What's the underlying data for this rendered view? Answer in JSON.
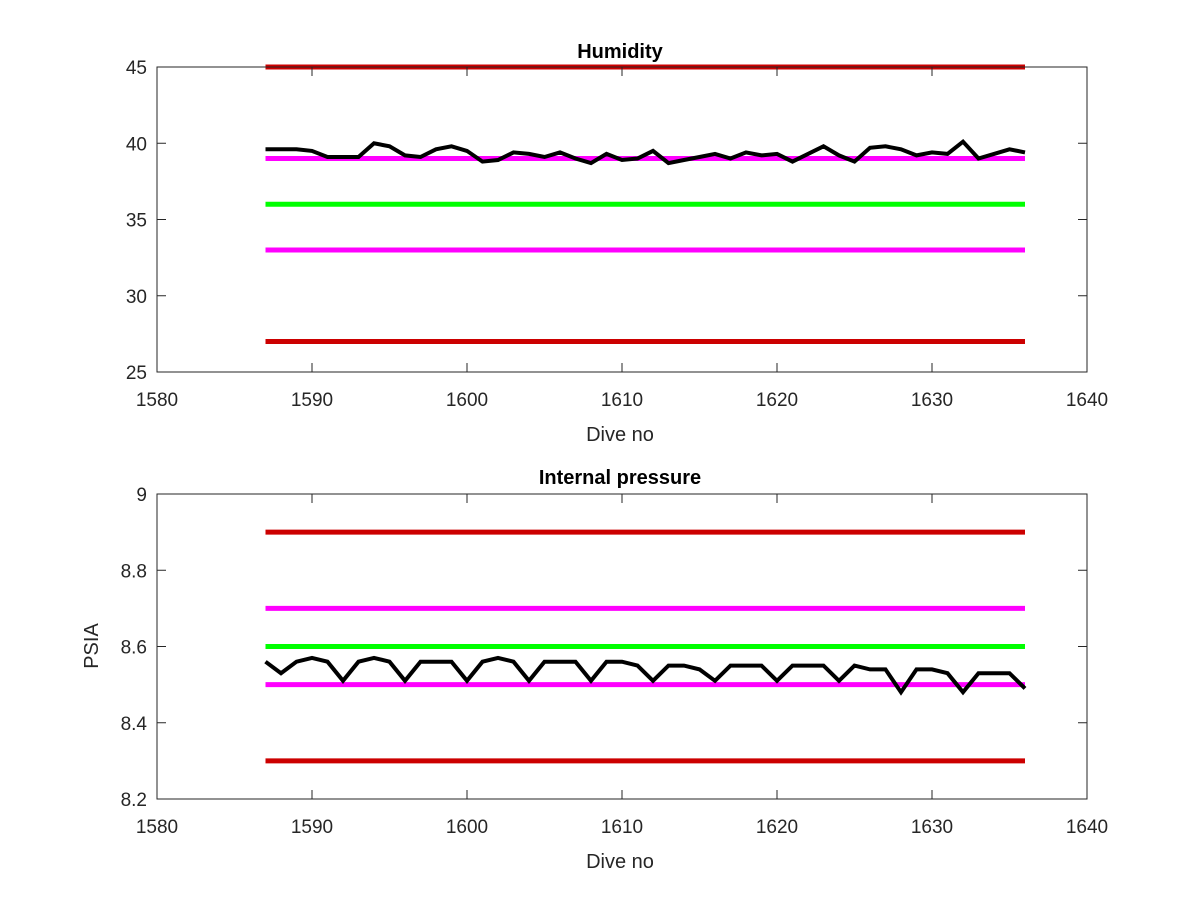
{
  "chart_data": [
    {
      "type": "line",
      "title": "Humidity",
      "xlabel": "Dive no",
      "ylabel": "",
      "xlim": [
        1580,
        1640
      ],
      "ylim": [
        25,
        45
      ],
      "xticks": [
        "1580",
        "1590",
        "1600",
        "1610",
        "1620",
        "1630",
        "1640"
      ],
      "yticks": [
        "25",
        "30",
        "35",
        "40",
        "45"
      ],
      "grid": false,
      "reference_lines": [
        {
          "y": 45,
          "x_range": [
            1587,
            1636
          ],
          "color": "#cc0000"
        },
        {
          "y": 39,
          "x_range": [
            1587,
            1636
          ],
          "color": "#ff00ff"
        },
        {
          "y": 36,
          "x_range": [
            1587,
            1636
          ],
          "color": "#00ff00"
        },
        {
          "y": 33,
          "x_range": [
            1587,
            1636
          ],
          "color": "#ff00ff"
        },
        {
          "y": 27,
          "x_range": [
            1587,
            1636
          ],
          "color": "#cc0000"
        }
      ],
      "series": [
        {
          "color": "#000000",
          "x": [
            1587,
            1588,
            1589,
            1590,
            1591,
            1592,
            1593,
            1594,
            1595,
            1596,
            1597,
            1598,
            1599,
            1600,
            1601,
            1602,
            1603,
            1604,
            1605,
            1606,
            1607,
            1608,
            1609,
            1610,
            1611,
            1612,
            1613,
            1614,
            1615,
            1616,
            1617,
            1618,
            1619,
            1620,
            1621,
            1622,
            1623,
            1624,
            1625,
            1626,
            1627,
            1628,
            1629,
            1630,
            1631,
            1632,
            1633,
            1634,
            1635,
            1636
          ],
          "y": [
            39.6,
            39.6,
            39.6,
            39.5,
            39.1,
            39.1,
            39.1,
            40.0,
            39.8,
            39.2,
            39.1,
            39.6,
            39.8,
            39.5,
            38.8,
            38.9,
            39.4,
            39.3,
            39.1,
            39.4,
            39.0,
            38.7,
            39.3,
            38.9,
            39.0,
            39.5,
            38.7,
            38.9,
            39.1,
            39.3,
            39.0,
            39.4,
            39.2,
            39.3,
            38.8,
            39.3,
            39.8,
            39.2,
            38.8,
            39.7,
            39.8,
            39.6,
            39.2,
            39.4,
            39.3,
            40.1,
            39.0,
            39.3,
            39.6,
            39.4
          ]
        }
      ]
    },
    {
      "type": "line",
      "title": "Internal pressure",
      "xlabel": "Dive no",
      "ylabel": "PSIA",
      "xlim": [
        1580,
        1640
      ],
      "ylim": [
        8.2,
        9.0
      ],
      "xticks": [
        "1580",
        "1590",
        "1600",
        "1610",
        "1620",
        "1630",
        "1640"
      ],
      "yticks": [
        "8.2",
        "8.4",
        "8.6",
        "8.8",
        "9"
      ],
      "grid": false,
      "reference_lines": [
        {
          "y": 8.9,
          "x_range": [
            1587,
            1636
          ],
          "color": "#cc0000"
        },
        {
          "y": 8.7,
          "x_range": [
            1587,
            1636
          ],
          "color": "#ff00ff"
        },
        {
          "y": 8.6,
          "x_range": [
            1587,
            1636
          ],
          "color": "#00ff00"
        },
        {
          "y": 8.5,
          "x_range": [
            1587,
            1636
          ],
          "color": "#ff00ff"
        },
        {
          "y": 8.3,
          "x_range": [
            1587,
            1636
          ],
          "color": "#cc0000"
        }
      ],
      "series": [
        {
          "color": "#000000",
          "x": [
            1587,
            1588,
            1589,
            1590,
            1591,
            1592,
            1593,
            1594,
            1595,
            1596,
            1597,
            1598,
            1599,
            1600,
            1601,
            1602,
            1603,
            1604,
            1605,
            1606,
            1607,
            1608,
            1609,
            1610,
            1611,
            1612,
            1613,
            1614,
            1615,
            1616,
            1617,
            1618,
            1619,
            1620,
            1621,
            1622,
            1623,
            1624,
            1625,
            1626,
            1627,
            1628,
            1629,
            1630,
            1631,
            1632,
            1633,
            1634,
            1635,
            1636
          ],
          "y": [
            8.56,
            8.53,
            8.56,
            8.57,
            8.56,
            8.51,
            8.56,
            8.57,
            8.56,
            8.51,
            8.56,
            8.56,
            8.56,
            8.51,
            8.56,
            8.57,
            8.56,
            8.51,
            8.56,
            8.56,
            8.56,
            8.51,
            8.56,
            8.56,
            8.55,
            8.51,
            8.55,
            8.55,
            8.54,
            8.51,
            8.55,
            8.55,
            8.55,
            8.51,
            8.55,
            8.55,
            8.55,
            8.51,
            8.55,
            8.54,
            8.54,
            8.48,
            8.54,
            8.54,
            8.53,
            8.48,
            8.53,
            8.53,
            8.53,
            8.49
          ]
        }
      ]
    }
  ]
}
